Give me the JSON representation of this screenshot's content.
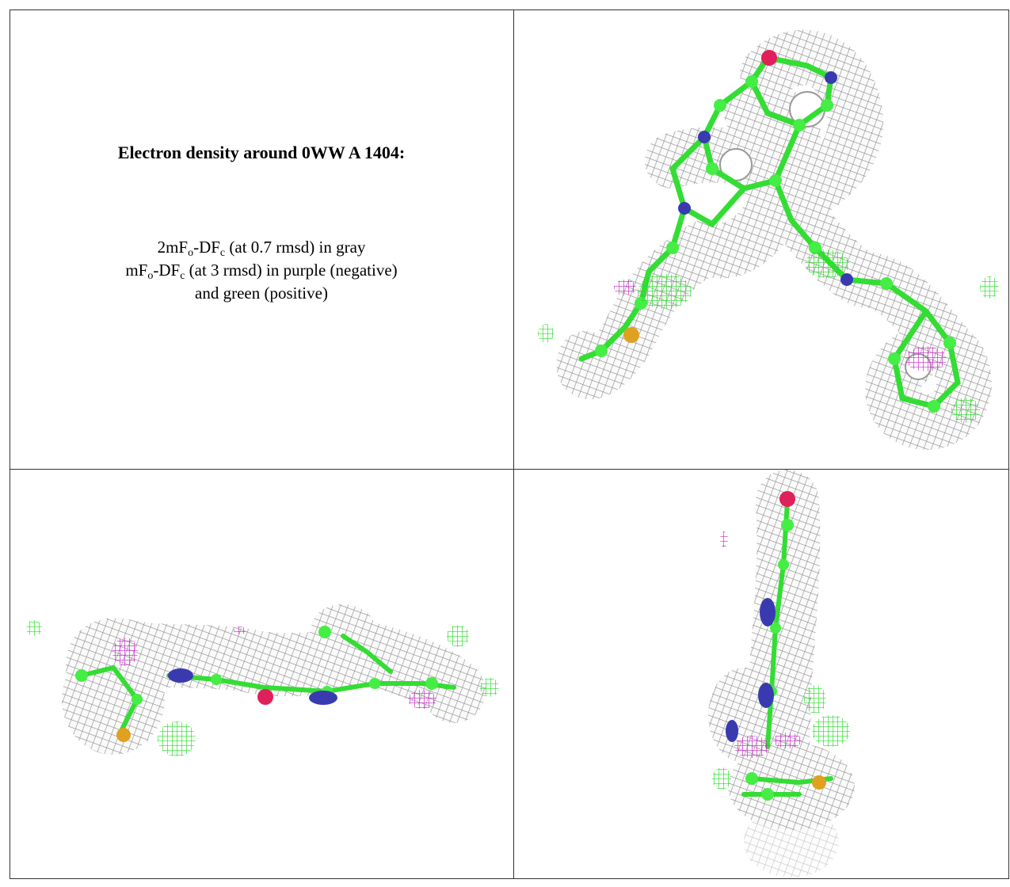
{
  "caption": {
    "title": "Electron density around 0WW A 1404:",
    "legend": [
      [
        "2mF",
        "o",
        "-DF",
        "c",
        " (at 0.7 rmsd) in gray"
      ],
      [
        "mF",
        "o",
        "-DF",
        "c",
        " (at 3 rmsd) in purple (negative)"
      ],
      [
        "and green (positive)"
      ]
    ]
  }
}
